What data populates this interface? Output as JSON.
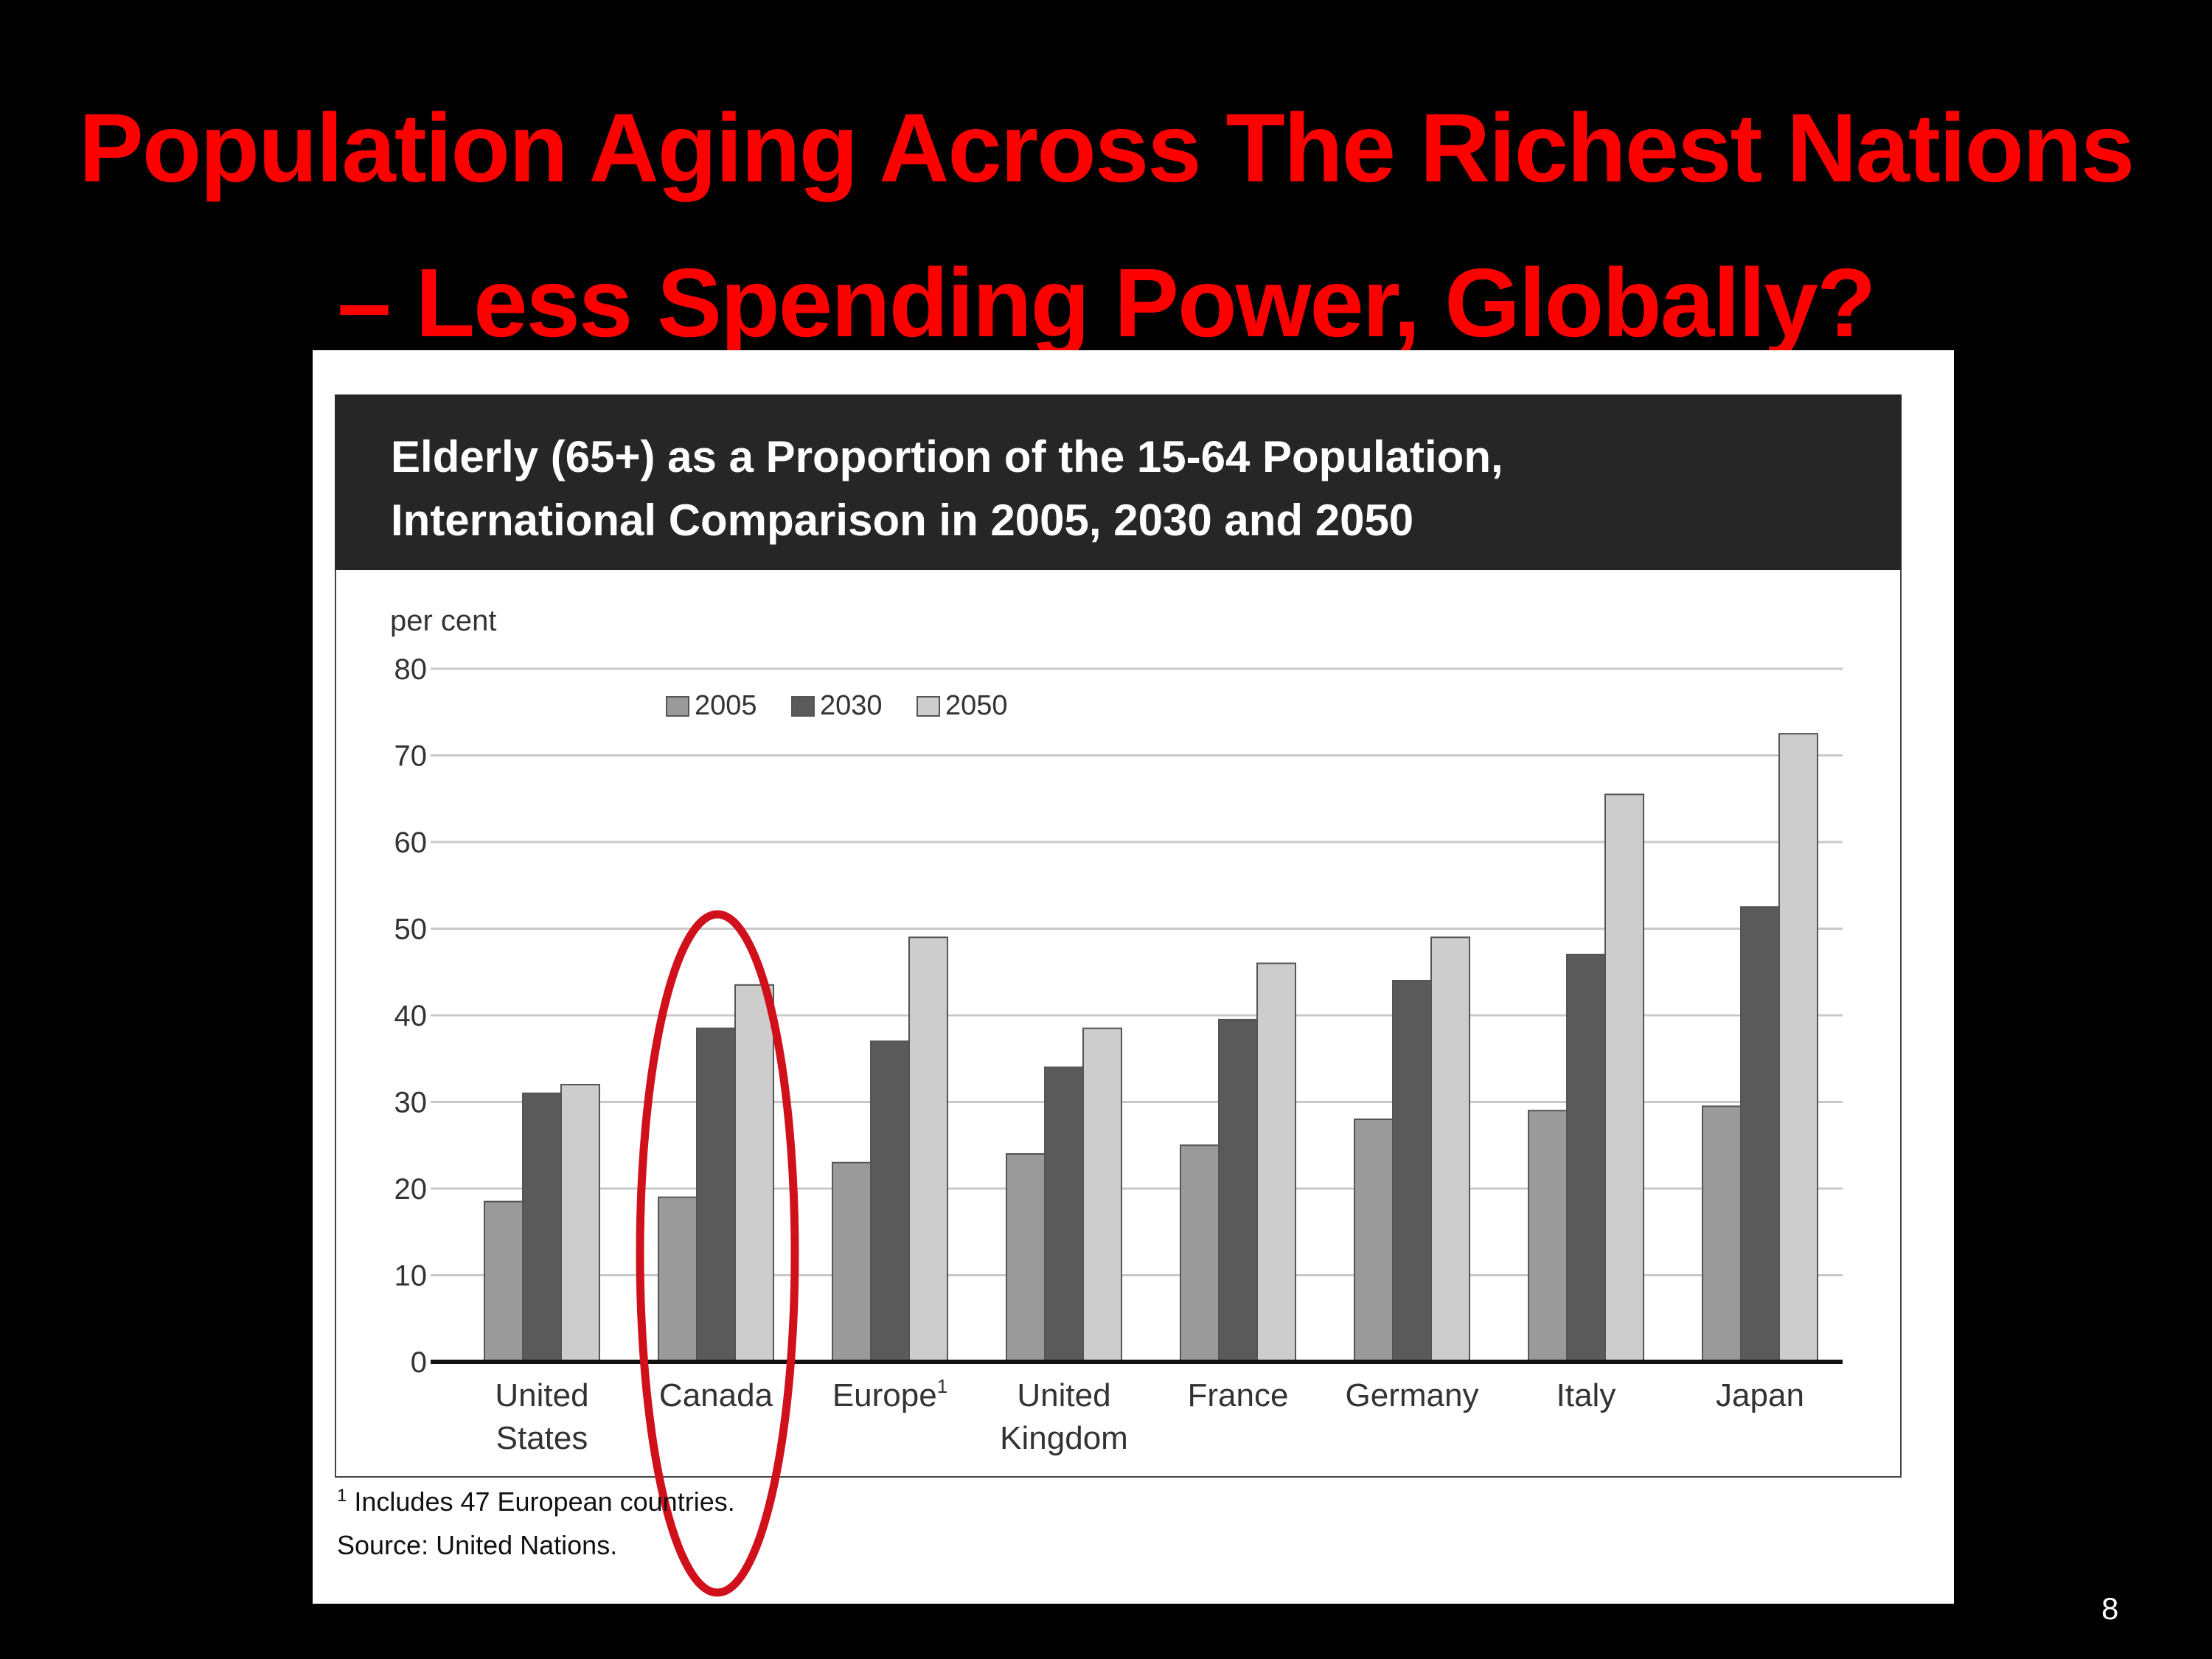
{
  "slide": {
    "title_line1": "Population Aging Across The Richest Nations",
    "title_line2": "– Less Spending Power, Globally?",
    "page_number": "8",
    "title_color": "#ff0000",
    "highlight_color": "#d0101a"
  },
  "figure": {
    "header_line1": "Elderly (65+) as a Proportion of the 15-64 Population,",
    "header_line2": "International Comparison in 2005, 2030 and 2050",
    "footnote_mark": "1",
    "footnote_text": "Includes 47 European countries.",
    "source": "Source: United Nations."
  },
  "chart_data": {
    "type": "bar",
    "ylabel": "per cent",
    "ylim": [
      0,
      80
    ],
    "yticks": [
      0,
      10,
      20,
      30,
      40,
      50,
      60,
      70,
      80
    ],
    "grid": true,
    "legend_position": "top-left",
    "categories": [
      {
        "lines": [
          "United",
          "States"
        ],
        "sup": ""
      },
      {
        "lines": [
          "Canada"
        ],
        "sup": ""
      },
      {
        "lines": [
          "Europe"
        ],
        "sup": "1"
      },
      {
        "lines": [
          "United",
          "Kingdom"
        ],
        "sup": ""
      },
      {
        "lines": [
          "France"
        ],
        "sup": ""
      },
      {
        "lines": [
          "Germany"
        ],
        "sup": ""
      },
      {
        "lines": [
          "Italy"
        ],
        "sup": ""
      },
      {
        "lines": [
          "Japan"
        ],
        "sup": ""
      }
    ],
    "series": [
      {
        "name": "2005",
        "color": "#9a9a9a",
        "values": [
          18.5,
          19,
          23,
          24,
          25,
          28,
          29,
          29.5
        ]
      },
      {
        "name": "2030",
        "color": "#5a5a5a",
        "values": [
          31,
          38.5,
          37,
          34,
          39.5,
          44,
          47,
          52.5
        ]
      },
      {
        "name": "2050",
        "color": "#cdcdcd",
        "values": [
          32,
          43.5,
          49,
          38.5,
          46,
          49,
          65.5,
          72.5
        ]
      }
    ],
    "highlighted_category": "Canada"
  }
}
